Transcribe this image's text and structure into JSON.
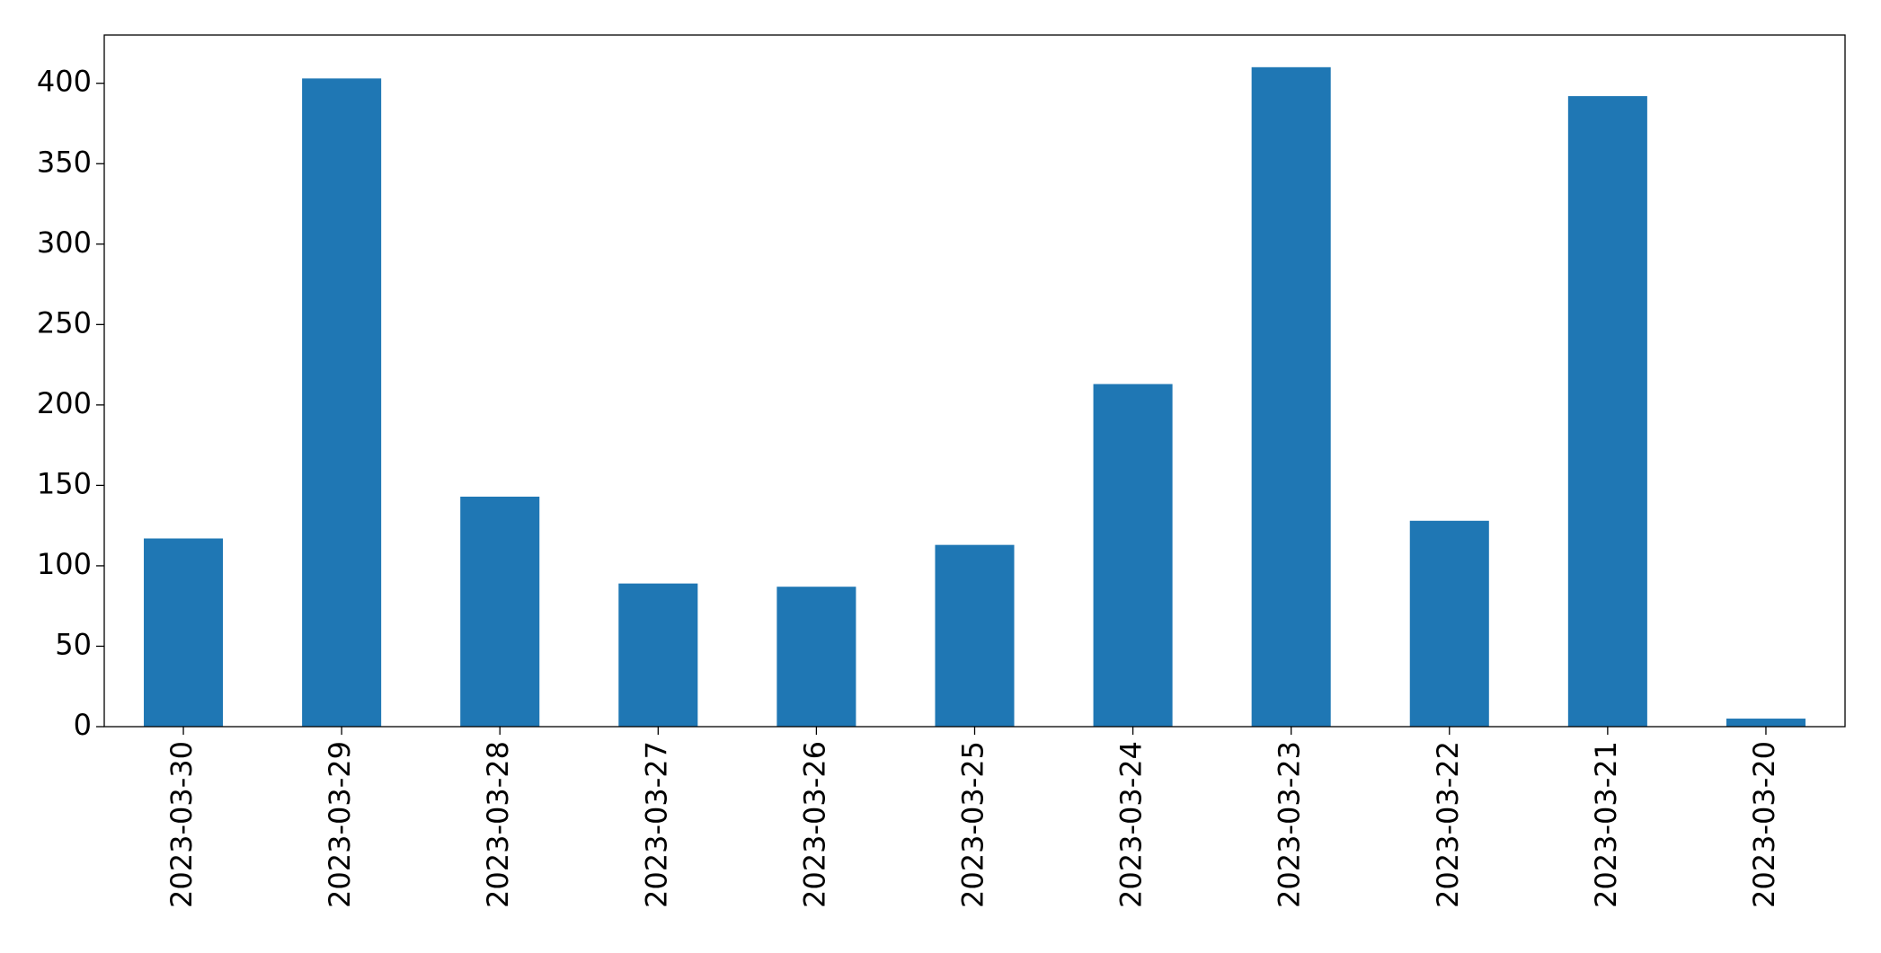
{
  "chart_data": {
    "type": "bar",
    "categories": [
      "2023-03-30",
      "2023-03-29",
      "2023-03-28",
      "2023-03-27",
      "2023-03-26",
      "2023-03-25",
      "2023-03-24",
      "2023-03-23",
      "2023-03-22",
      "2023-03-21",
      "2023-03-20"
    ],
    "values": [
      117,
      403,
      143,
      89,
      87,
      113,
      213,
      410,
      128,
      392,
      5
    ],
    "color": "#1f77b4",
    "ylim": [
      0,
      430
    ],
    "yticks": [
      0,
      50,
      100,
      150,
      200,
      250,
      300,
      350,
      400
    ],
    "grid": false
  }
}
